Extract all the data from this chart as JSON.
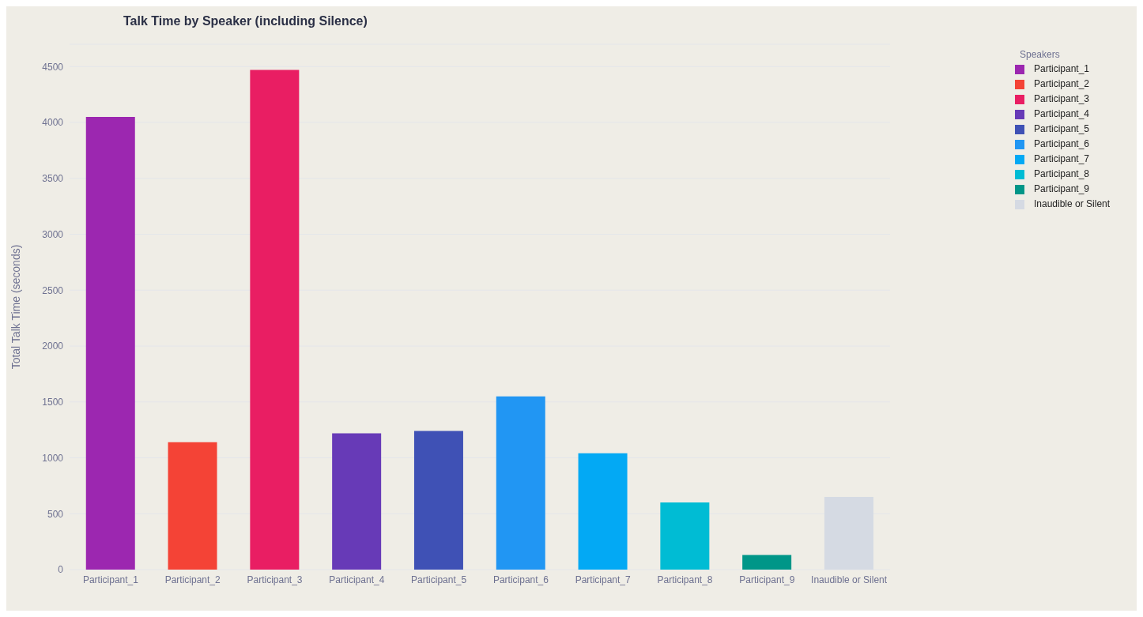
{
  "chart_data": {
    "type": "bar",
    "title": "Talk Time by Speaker (including Silence)",
    "ylabel": "Total Talk Time (seconds)",
    "legend_title": "Speakers",
    "stacked": true,
    "categories": [
      "Participant_1",
      "Participant_2",
      "Participant_3",
      "Participant_4",
      "Participant_5",
      "Participant_6",
      "Participant_7",
      "Participant_8",
      "Participant_9",
      "Inaudible or Silent"
    ],
    "series": [
      {
        "name": "Participant_1",
        "color": "#9c27b0",
        "values": [
          4050,
          null,
          null,
          null,
          null,
          null,
          null,
          null,
          null,
          null
        ]
      },
      {
        "name": "Participant_2",
        "color": "#f44336",
        "values": [
          null,
          1140,
          null,
          null,
          null,
          null,
          null,
          null,
          null,
          null
        ]
      },
      {
        "name": "Participant_3",
        "color": "#e91e63",
        "values": [
          null,
          null,
          4470,
          null,
          null,
          null,
          null,
          null,
          null,
          null
        ]
      },
      {
        "name": "Participant_4",
        "color": "#673ab7",
        "values": [
          null,
          null,
          null,
          1220,
          null,
          null,
          null,
          null,
          null,
          null
        ]
      },
      {
        "name": "Participant_5",
        "color": "#3f51b5",
        "values": [
          null,
          null,
          null,
          null,
          1240,
          null,
          null,
          null,
          null,
          null
        ]
      },
      {
        "name": "Participant_6",
        "color": "#2196f3",
        "values": [
          null,
          null,
          null,
          null,
          null,
          1550,
          null,
          null,
          null,
          null
        ]
      },
      {
        "name": "Participant_7",
        "color": "#03a9f4",
        "values": [
          null,
          null,
          null,
          null,
          null,
          null,
          1040,
          null,
          null,
          null
        ]
      },
      {
        "name": "Participant_8",
        "color": "#00bcd4",
        "values": [
          null,
          null,
          null,
          null,
          null,
          null,
          null,
          600,
          null,
          null
        ]
      },
      {
        "name": "Participant_9",
        "color": "#009688",
        "values": [
          null,
          null,
          null,
          null,
          null,
          null,
          null,
          null,
          130,
          null
        ]
      },
      {
        "name": "Inaudible or Silent",
        "color": "#d5dae3",
        "values": [
          null,
          null,
          null,
          null,
          null,
          null,
          null,
          null,
          null,
          650
        ]
      }
    ],
    "ylim": [
      0,
      4700
    ],
    "yticks": [
      0,
      500,
      1000,
      1500,
      2000,
      2500,
      3000,
      3500,
      4000,
      4500
    ],
    "grid": "y",
    "legend": "top right"
  }
}
